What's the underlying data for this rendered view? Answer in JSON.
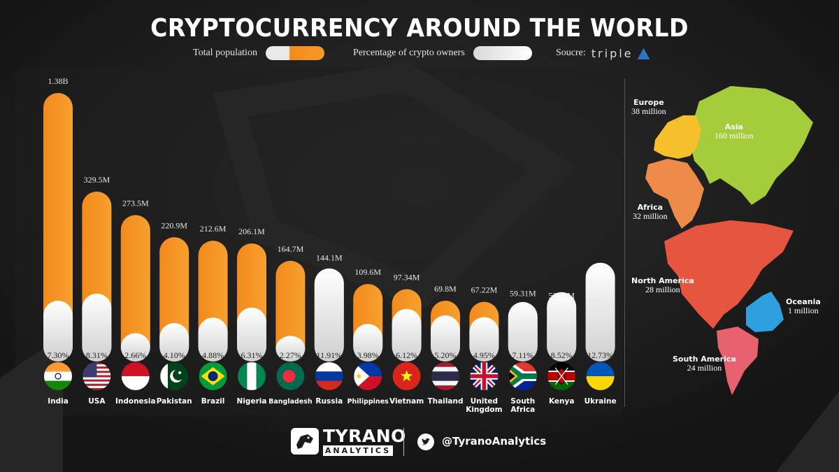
{
  "header": {
    "title": "CRYPTOCURRENCY AROUND THE WORLD",
    "legend_population": "Total population",
    "legend_crypto": "Percentage of crypto owners",
    "source_label": "Soucre:",
    "source_brand": "triple"
  },
  "colors": {
    "population": "#f28a1c",
    "crypto": "#eeeeee",
    "background": "#1b1b1b",
    "europe": "#f5c02c",
    "asia": "#a5cd3b",
    "africa": "#ef8b48",
    "north_america": "#e5553f",
    "south_america": "#e8616e",
    "oceania": "#2ea0df"
  },
  "chart_data": {
    "type": "bar",
    "categories": [
      "India",
      "USA",
      "Indonesia",
      "Pakistan",
      "Brazil",
      "Nigeria",
      "Bangladesh",
      "Russia",
      "Philippines",
      "Vietnam",
      "Thailand",
      "United Kingdom",
      "South Africa",
      "Kenya",
      "Ukraine"
    ],
    "population_labels": [
      "1.38B",
      "329.5M",
      "273.5M",
      "220.9M",
      "212.6M",
      "206.1M",
      "164.7M",
      "144.1M",
      "109.6M",
      "97.34M",
      "69.8M",
      "67.22M",
      "59.31M",
      "53.77M",
      "44.13M"
    ],
    "crypto_labels": [
      "7.30%",
      "8.31%",
      "2.66%",
      "4.10%",
      "4.88%",
      "6.31%",
      "2.27%",
      "11.91%",
      "3.98%",
      "6.12%",
      "5.20%",
      "4.95%",
      "7.11%",
      "8.52%",
      "12.73%"
    ],
    "series": [
      {
        "name": "Total population",
        "values": [
          1380,
          329.5,
          273.5,
          220.9,
          212.6,
          206.1,
          164.7,
          144.1,
          109.6,
          97.34,
          69.8,
          67.22,
          59.31,
          53.77,
          44.13
        ]
      },
      {
        "name": "Percentage of crypto owners",
        "values": [
          7.3,
          8.31,
          2.66,
          4.1,
          4.88,
          6.31,
          2.27,
          11.91,
          3.98,
          6.12,
          5.2,
          4.95,
          7.11,
          8.52,
          12.73
        ]
      }
    ],
    "flag_icons": [
      "india-flag-icon",
      "usa-flag-icon",
      "indonesia-flag-icon",
      "pakistan-flag-icon",
      "brazil-flag-icon",
      "nigeria-flag-icon",
      "bangladesh-flag-icon",
      "russia-flag-icon",
      "philippines-flag-icon",
      "vietnam-flag-icon",
      "thailand-flag-icon",
      "uk-flag-icon",
      "south-africa-flag-icon",
      "kenya-flag-icon",
      "ukraine-flag-icon"
    ]
  },
  "regions": {
    "europe": {
      "name": "Europe",
      "value": "38 million"
    },
    "asia": {
      "name": "Asia",
      "value": "160 million"
    },
    "africa": {
      "name": "Africa",
      "value": "32 million"
    },
    "north_america": {
      "name": "North America",
      "value": "28 million"
    },
    "oceania": {
      "name": "Oceania",
      "value": "1 million"
    },
    "south_america": {
      "name": "South America",
      "value": "24 million"
    }
  },
  "footer": {
    "brand_name": "TYRANO",
    "brand_sub": "ANALYTICS",
    "handle": "@TyranoAnalytics",
    "twitter_icon": "twitter-icon"
  }
}
